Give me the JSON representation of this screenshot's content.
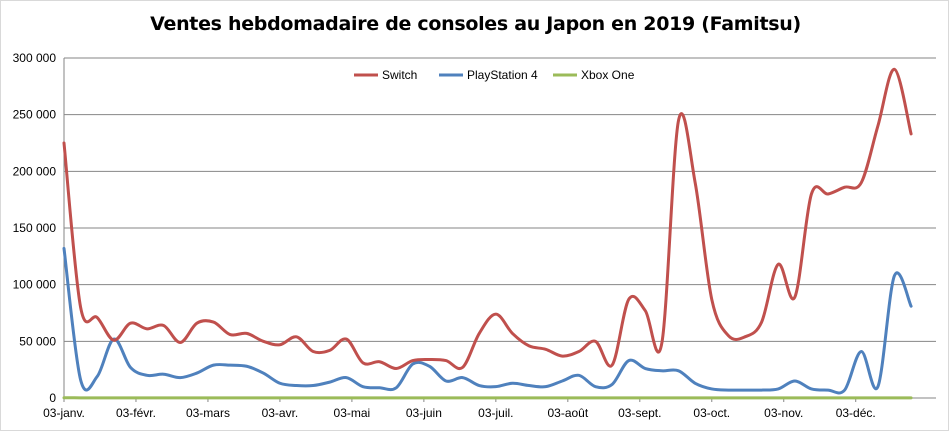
{
  "chart_data": {
    "type": "line",
    "title": "Ventes hebdomadaire de consoles au Japon en 2019 (Famitsu)",
    "ylim": [
      0,
      300000
    ],
    "y_ticks": [
      0,
      50000,
      100000,
      150000,
      200000,
      250000,
      300000
    ],
    "y_tick_labels": [
      "0",
      "50 000",
      "100 000",
      "150 000",
      "200 000",
      "250 000",
      "300 000"
    ],
    "x_tick_labels": [
      "03-janv.",
      "03-févr.",
      "03-mars",
      "03-avr.",
      "03-mai",
      "03-juin",
      "03-juil.",
      "03-août",
      "03-sept.",
      "03-oct.",
      "03-nov.",
      "03-déc."
    ],
    "x_unit": "week index (0 = 03-janv., 52 = end of December)",
    "x_range": [
      0,
      52.5
    ],
    "grid": {
      "horizontal": true,
      "vertical": false
    },
    "legend_position": "top-center",
    "series": [
      {
        "name": "Switch",
        "color": "#c0504d",
        "values": [
          225000,
          80000,
          71000,
          51000,
          66000,
          61000,
          64000,
          49000,
          66000,
          67000,
          56000,
          57000,
          50000,
          47000,
          54000,
          41000,
          42000,
          52000,
          31000,
          32000,
          26000,
          33000,
          34000,
          33000,
          27000,
          57000,
          74000,
          57000,
          46000,
          43000,
          37000,
          41000,
          50000,
          29000,
          87000,
          77000,
          49000,
          245000,
          190000,
          87000,
          55000,
          54000,
          67000,
          118000,
          89000,
          180000,
          180000,
          186000,
          190000,
          240000,
          290000,
          233000
        ]
      },
      {
        "name": "PlayStation 4",
        "color": "#4f81bd",
        "values": [
          132000,
          16000,
          19000,
          52000,
          27000,
          20000,
          21000,
          18000,
          22000,
          29000,
          29000,
          28000,
          22000,
          13000,
          11000,
          11000,
          14000,
          18000,
          10000,
          9000,
          9000,
          30000,
          28000,
          15000,
          18000,
          11000,
          10000,
          13000,
          11000,
          10000,
          15000,
          20000,
          10000,
          12000,
          33000,
          26000,
          24000,
          24000,
          13000,
          8000,
          7000,
          7000,
          7000,
          8000,
          15000,
          8000,
          7000,
          7000,
          41000,
          10000,
          108000,
          81000
        ]
      },
      {
        "name": "Xbox One",
        "color": "#9bbb59",
        "values": [
          200,
          150,
          150,
          150,
          150,
          150,
          150,
          150,
          150,
          150,
          150,
          150,
          150,
          150,
          150,
          150,
          150,
          150,
          150,
          150,
          150,
          150,
          150,
          150,
          150,
          150,
          150,
          150,
          150,
          150,
          150,
          150,
          150,
          150,
          150,
          150,
          150,
          150,
          150,
          150,
          150,
          150,
          150,
          150,
          150,
          150,
          150,
          150,
          150,
          150,
          150,
          150
        ]
      }
    ]
  }
}
